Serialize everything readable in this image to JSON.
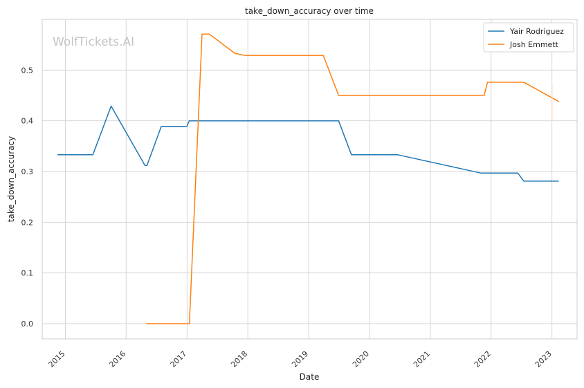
{
  "watermark": "WolfTickets.AI",
  "chart_data": {
    "type": "line",
    "title": "take_down_accuracy over time",
    "xlabel": "Date",
    "ylabel": "take_down_accuracy",
    "xlim": [
      "2014-08-15",
      "2023-06-01"
    ],
    "ylim": [
      -0.03,
      0.6
    ],
    "x_ticks": [
      "2015",
      "2016",
      "2017",
      "2018",
      "2019",
      "2020",
      "2021",
      "2022",
      "2023"
    ],
    "y_ticks": [
      "0.0",
      "0.1",
      "0.2",
      "0.3",
      "0.4",
      "0.5"
    ],
    "grid": true,
    "legend_position": "top-right",
    "series": [
      {
        "name": "Yair Rodriguez",
        "color": "#1f77b4",
        "points": [
          [
            "2014-11-15",
            0.333
          ],
          [
            "2015-06-15",
            0.333
          ],
          [
            "2015-10-03",
            0.429
          ],
          [
            "2016-04-23",
            0.312
          ],
          [
            "2016-05-05",
            0.312
          ],
          [
            "2016-07-30",
            0.389
          ],
          [
            "2016-12-31",
            0.389
          ],
          [
            "2017-01-14",
            0.4
          ],
          [
            "2019-06-30",
            0.4
          ],
          [
            "2019-09-15",
            0.333
          ],
          [
            "2020-06-20",
            0.333
          ],
          [
            "2021-10-30",
            0.297
          ],
          [
            "2022-06-10",
            0.297
          ],
          [
            "2022-07-16",
            0.281
          ],
          [
            "2023-02-11",
            0.281
          ]
        ]
      },
      {
        "name": "Josh Emmett",
        "color": "#ff7f0e",
        "points": [
          [
            "2016-05-01",
            0.0
          ],
          [
            "2017-01-15",
            0.0
          ],
          [
            "2017-04-01",
            0.571
          ],
          [
            "2017-05-15",
            0.571
          ],
          [
            "2017-10-15",
            0.533
          ],
          [
            "2017-12-15",
            0.529
          ],
          [
            "2019-03-30",
            0.529
          ],
          [
            "2019-06-30",
            0.45
          ],
          [
            "2021-11-20",
            0.45
          ],
          [
            "2021-12-10",
            0.476
          ],
          [
            "2022-07-16",
            0.476
          ],
          [
            "2023-02-11",
            0.438
          ]
        ]
      }
    ]
  }
}
